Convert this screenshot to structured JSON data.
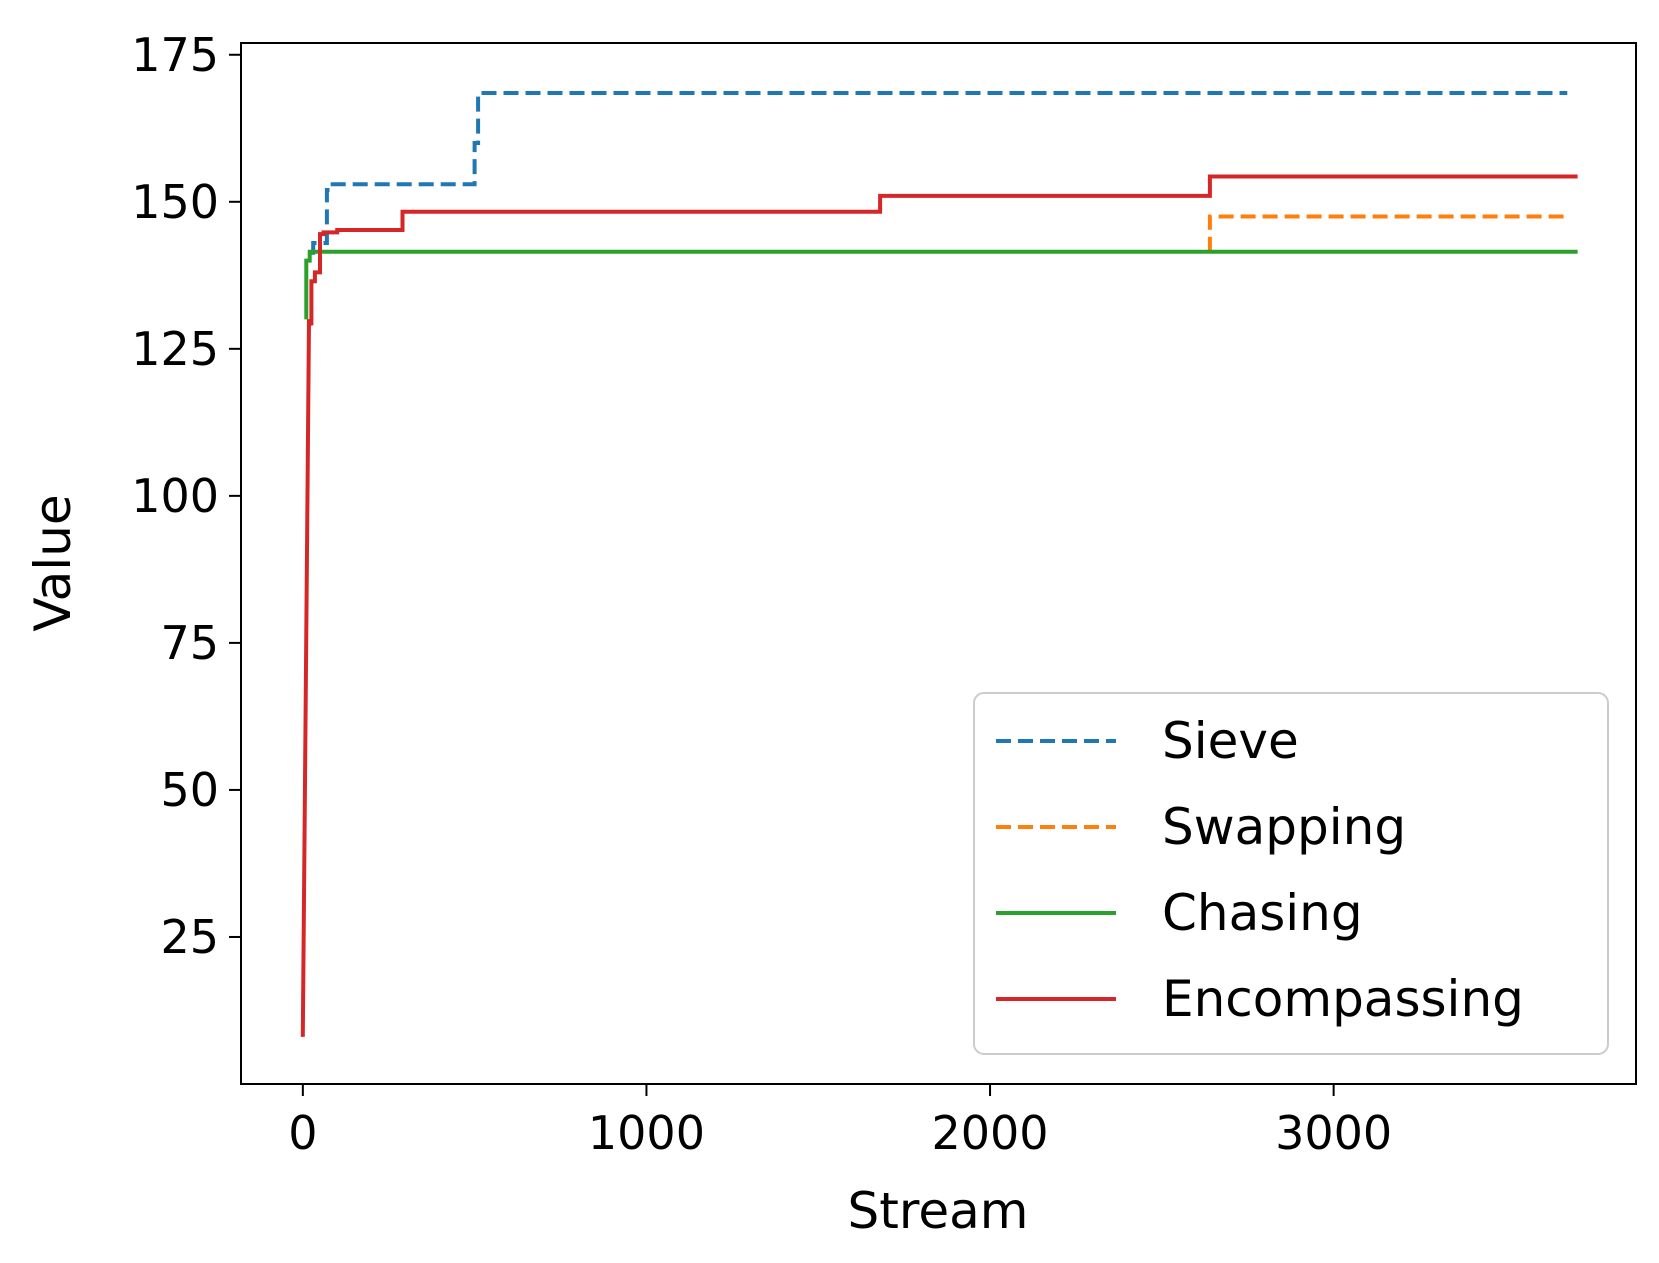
{
  "chart_data": {
    "type": "line",
    "title": "",
    "xlabel": "Stream",
    "ylabel": "Value",
    "xlim": [
      -180,
      3880
    ],
    "ylim": [
      0,
      177
    ],
    "xticks": [
      0,
      1000,
      2000,
      3000
    ],
    "xtick_labels": [
      "0",
      "1000",
      "2000",
      "3000"
    ],
    "yticks": [
      25,
      50,
      75,
      100,
      125,
      150,
      175
    ],
    "ytick_labels": [
      "25",
      "50",
      "75",
      "100",
      "125",
      "150",
      "175"
    ],
    "grid": false,
    "legend_position": "lower-right",
    "series": [
      {
        "name": "Sieve",
        "color": "#1f77b4",
        "dash": "dashed",
        "x": [
          30,
          30,
          70,
          70,
          80,
          80,
          500,
          500,
          510,
          510,
          3680
        ],
        "y": [
          141,
          143,
          143,
          152,
          152,
          153,
          153,
          160,
          160,
          168.5,
          168.5
        ]
      },
      {
        "name": "Swapping",
        "color": "#ff7f0e",
        "dash": "dashed",
        "x": [
          2640,
          2640,
          3680
        ],
        "y": [
          141.5,
          147.5,
          147.5
        ]
      },
      {
        "name": "Chasing",
        "color": "#2ca02c",
        "dash": "solid",
        "x": [
          10,
          10,
          20,
          20,
          3710
        ],
        "y": [
          130,
          140,
          140,
          141.5,
          141.5
        ]
      },
      {
        "name": "Encompassing",
        "color": "#d62728",
        "dash": "solid",
        "x": [
          0,
          18,
          25,
          25,
          35,
          35,
          50,
          50,
          60,
          60,
          100,
          100,
          290,
          290,
          1680,
          1680,
          2640,
          2640,
          3710
        ],
        "y": [
          8,
          130,
          129,
          136.5,
          136.5,
          138,
          138,
          144.5,
          144.5,
          144.8,
          144.8,
          145.2,
          145.2,
          148.3,
          148.3,
          151,
          151,
          154.3,
          154.3
        ]
      }
    ]
  }
}
